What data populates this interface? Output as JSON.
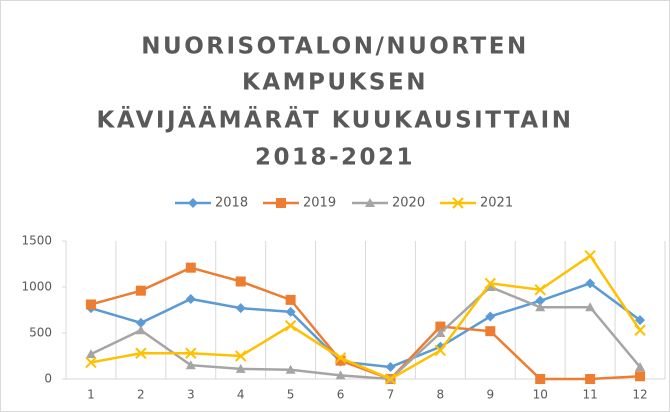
{
  "chart_data": {
    "type": "line",
    "title": [
      "NUORISOTALON/NUORTEN",
      "KAMPUKSEN",
      "KÄVIJÄÄMÄRÄT KUUKAUSITTAIN",
      "2018-2021"
    ],
    "categories": [
      "1",
      "2",
      "3",
      "4",
      "5",
      "6",
      "7",
      "8",
      "9",
      "10",
      "11",
      "12"
    ],
    "series": [
      {
        "name": "2018",
        "color": "#5b9bd5",
        "marker": "diamond",
        "values": [
          770,
          610,
          870,
          770,
          730,
          190,
          130,
          350,
          680,
          850,
          1040,
          640
        ]
      },
      {
        "name": "2019",
        "color": "#ed7d31",
        "marker": "square",
        "values": [
          810,
          960,
          1210,
          1060,
          860,
          200,
          0,
          570,
          520,
          0,
          0,
          30
        ]
      },
      {
        "name": "2020",
        "color": "#a5a5a5",
        "marker": "triangle",
        "values": [
          270,
          530,
          150,
          110,
          100,
          40,
          0,
          500,
          1000,
          780,
          780,
          130
        ]
      },
      {
        "name": "2021",
        "color": "#ffc000",
        "marker": "x",
        "values": [
          180,
          280,
          280,
          250,
          580,
          230,
          0,
          310,
          1040,
          970,
          1340,
          530
        ]
      }
    ],
    "ylim": [
      0,
      1500
    ],
    "yticks": [
      0,
      500,
      1000,
      1500
    ],
    "legend": "top"
  }
}
